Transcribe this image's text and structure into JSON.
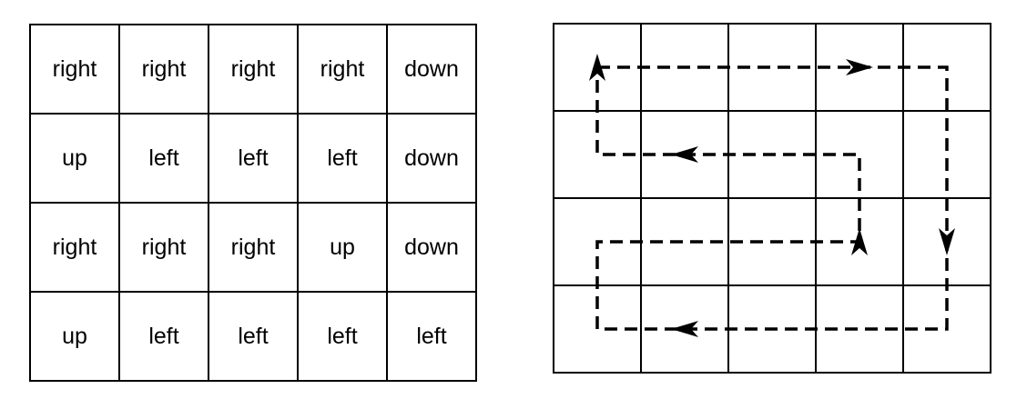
{
  "direction_grid": {
    "rows": [
      [
        "right",
        "right",
        "right",
        "right",
        "down"
      ],
      [
        "up",
        "left",
        "left",
        "left",
        "down"
      ],
      [
        "right",
        "right",
        "right",
        "up",
        "down"
      ],
      [
        "up",
        "left",
        "left",
        "left",
        "left"
      ]
    ]
  },
  "path_grid": {
    "rows": 4,
    "cols": 5,
    "line_color": "#000000",
    "path_style": "dashed",
    "path_route": [
      [
        0,
        0
      ],
      [
        1,
        0
      ],
      [
        2,
        0
      ],
      [
        3,
        0
      ],
      [
        4,
        0
      ],
      [
        4,
        1
      ],
      [
        4,
        2
      ],
      [
        4,
        3
      ],
      [
        3,
        3
      ],
      [
        2,
        3
      ],
      [
        1,
        3
      ],
      [
        0,
        3
      ],
      [
        0,
        2
      ],
      [
        1,
        2
      ],
      [
        2,
        2
      ],
      [
        3,
        2
      ],
      [
        3,
        1
      ],
      [
        2,
        1
      ],
      [
        1,
        1
      ],
      [
        0,
        1
      ],
      [
        0,
        0
      ]
    ]
  }
}
